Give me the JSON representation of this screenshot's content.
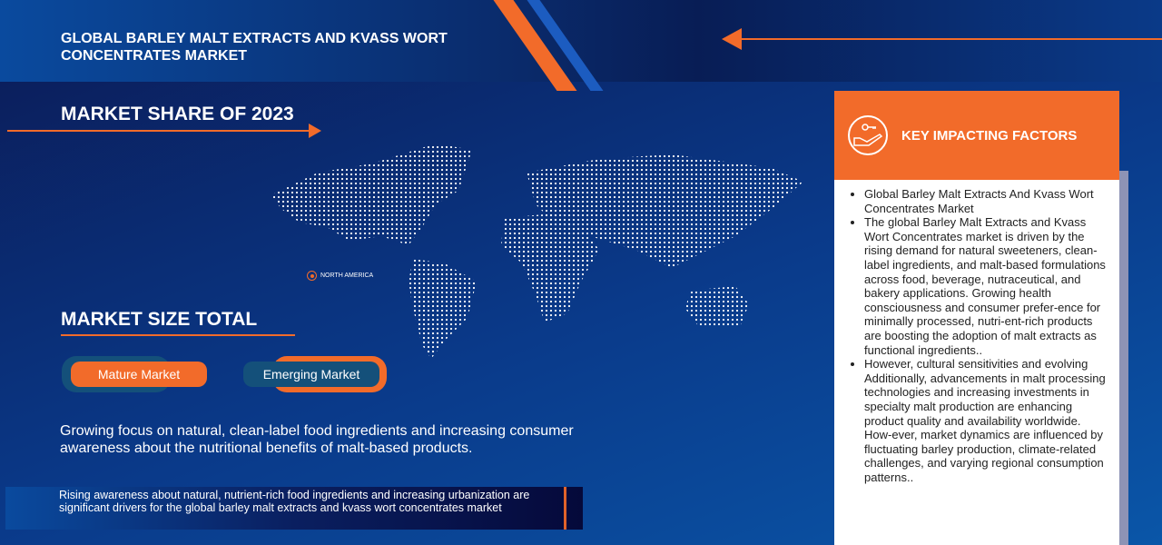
{
  "header": {
    "title": "GLOBAL BARLEY MALT EXTRACTS AND KVASS WORT CONCENTRATES MARKET"
  },
  "market_share": {
    "title": "MARKET SHARE OF 2023",
    "region_label": "NORTH AMERICA"
  },
  "market_size": {
    "title": "MARKET SIZE TOTAL",
    "mature_label": "Mature Market",
    "emerging_label": "Emerging Market"
  },
  "description": "Growing focus on natural, clean-label food ingredients and increasing consumer awareness about the nutritional benefits of malt-based products.",
  "band_text": "Rising awareness about natural, nutrient-rich food ingredients and increasing urbanization are significant drivers for the global barley malt extracts and kvass wort concentrates market",
  "key_factors": {
    "title": "KEY IMPACTING FACTORS",
    "icon": "hand-key-icon",
    "items": [
      "Global Barley Malt Extracts And Kvass Wort Concentrates Market",
      "The global Barley Malt Extracts and Kvass Wort Concentrates market is driven by the rising demand for natural sweeteners, clean-label ingredients, and malt-based formulations across food, beverage, nutraceutical, and bakery applications. Growing health consciousness and consumer prefer-ence for minimally processed, nutri-ent-rich products are boosting the adoption of malt extracts as functional ingredients..",
      "However, cultural sensitivities and evolving Additionally, advancements in malt processing technologies and increasing investments in specialty malt production are enhancing product quality and availability worldwide. How-ever, market dynamics are influenced by fluctuating barley production, climate-related challenges, and varying regional consumption patterns.."
    ]
  },
  "colors": {
    "accent": "#f26b2a",
    "navy": "#0b1a55",
    "teal": "#14507a"
  }
}
